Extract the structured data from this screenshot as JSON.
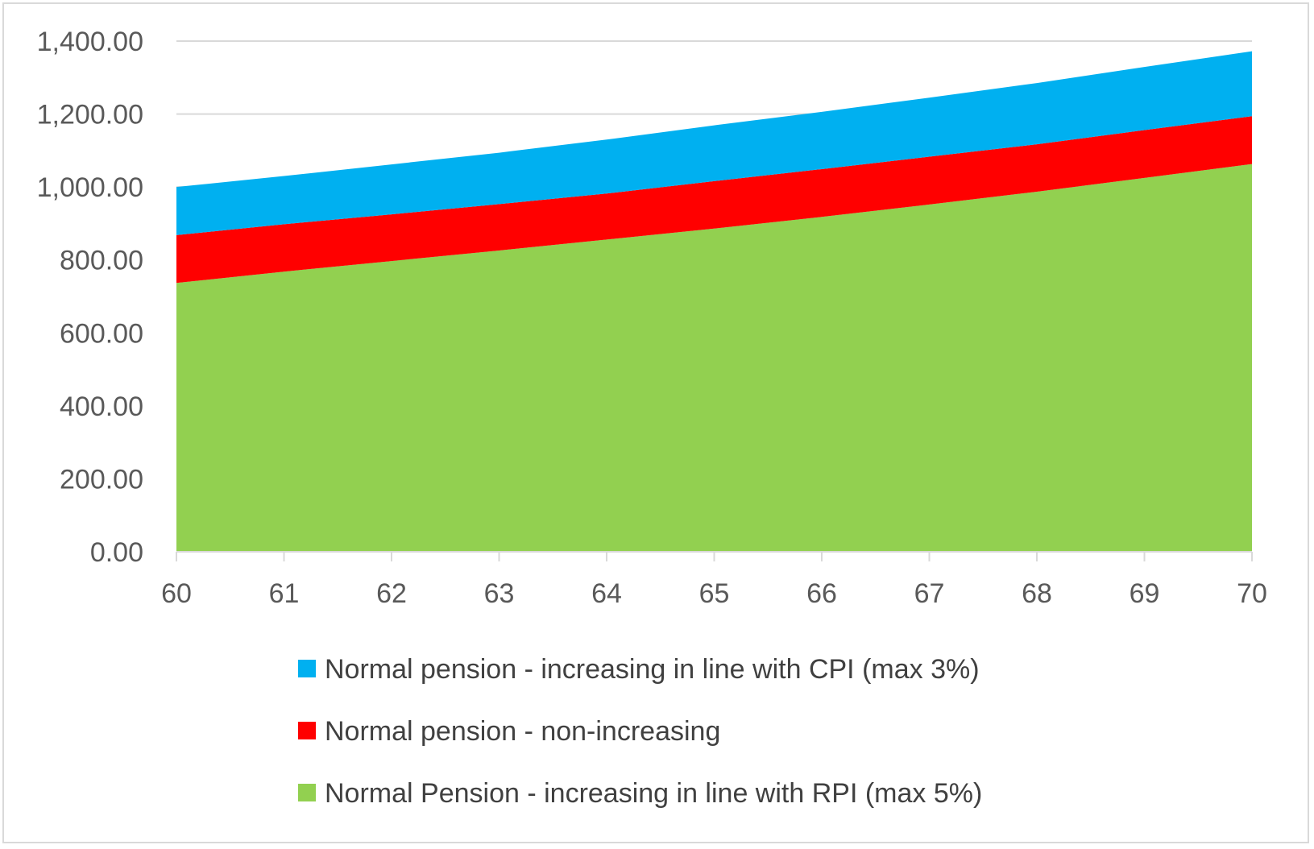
{
  "chart_data": {
    "type": "area",
    "stacked": true,
    "x": [
      60,
      61,
      62,
      63,
      64,
      65,
      66,
      67,
      68,
      69,
      70
    ],
    "ylim": [
      0,
      1400
    ],
    "yticks": [
      "0.00",
      "200.00",
      "400.00",
      "600.00",
      "800.00",
      "1,000.00",
      "1,200.00",
      "1,400.00"
    ],
    "ytick_values": [
      0,
      200,
      400,
      600,
      800,
      1000,
      1200,
      1400
    ],
    "xticks": [
      "60",
      "61",
      "62",
      "63",
      "64",
      "65",
      "66",
      "67",
      "68",
      "69",
      "70"
    ],
    "grid": true,
    "legend_position": "bottom",
    "series": [
      {
        "name": "Normal Pension - increasing in line with RPI (max 5%)",
        "color": "#92D050",
        "values": [
          737,
          768,
          797,
          826,
          856,
          886,
          918,
          952,
          987,
          1025,
          1063
        ]
      },
      {
        "name": "Normal pension - non-increasing",
        "color": "#FF0000",
        "values": [
          131,
          130,
          128,
          127,
          126,
          130,
          131,
          131,
          130,
          131,
          131
        ]
      },
      {
        "name": "Normal pension - increasing in line with CPI (max 3%)",
        "color": "#00B0F0",
        "values": [
          132,
          132,
          137,
          141,
          148,
          153,
          157,
          162,
          168,
          173,
          178
        ]
      }
    ],
    "legend": [
      {
        "label": "Normal pension - increasing in line with CPI (max 3%)",
        "color": "#00B0F0"
      },
      {
        "label": "Normal pension - non-increasing",
        "color": "#FF0000"
      },
      {
        "label": "Normal Pension - increasing in line with RPI (max 5%)",
        "color": "#92D050"
      }
    ]
  }
}
